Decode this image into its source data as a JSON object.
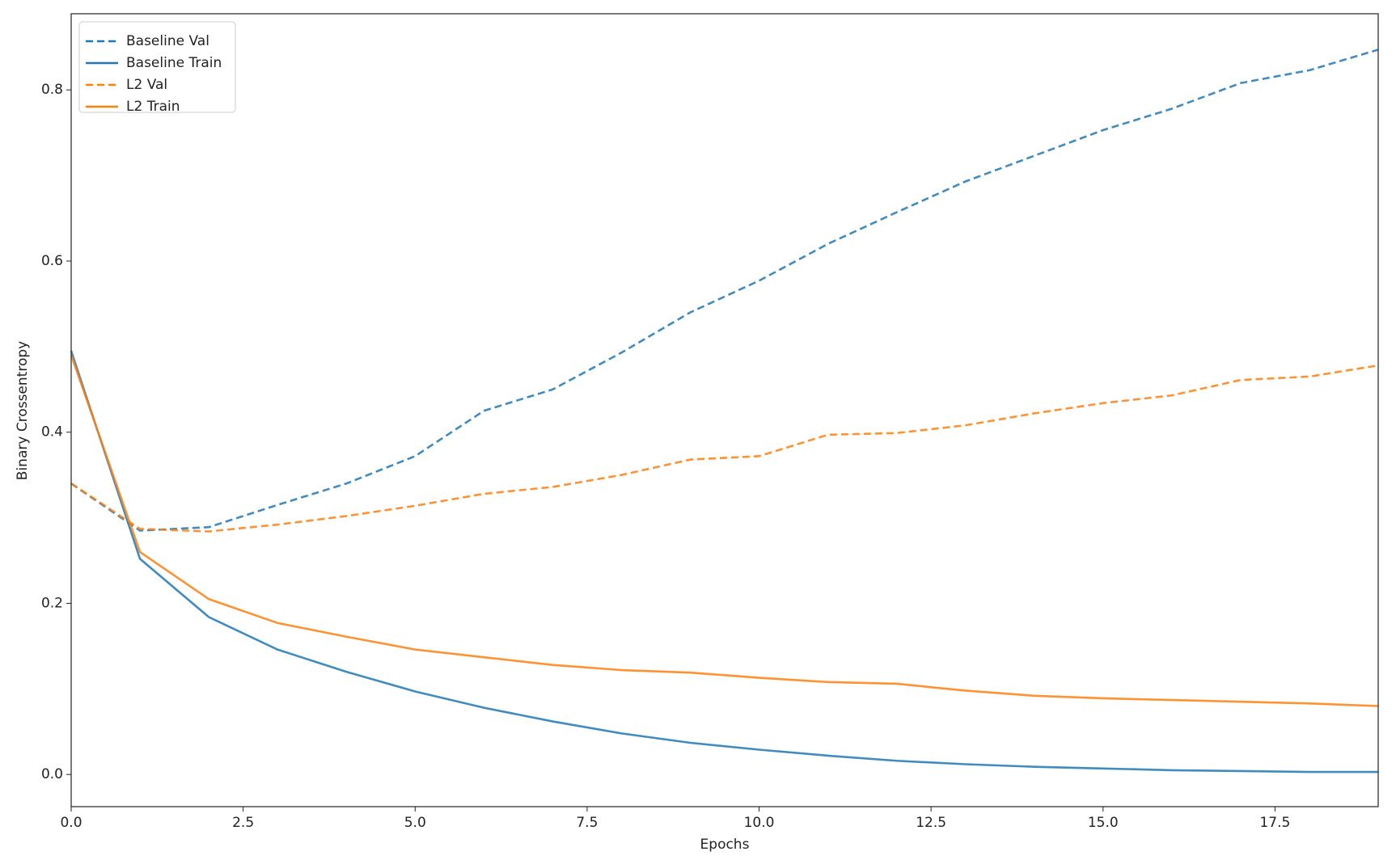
{
  "chart_data": {
    "type": "line",
    "xlabel": "Epochs",
    "ylabel": "Binary Crossentropy",
    "x": [
      0,
      1,
      2,
      3,
      4,
      5,
      6,
      7,
      8,
      9,
      10,
      11,
      12,
      13,
      14,
      15,
      16,
      17,
      18,
      19
    ],
    "series": [
      {
        "name": "Baseline Val",
        "color": "#1f77b4",
        "dashed": true,
        "values": [
          0.34,
          0.285,
          0.289,
          0.315,
          0.34,
          0.372,
          0.425,
          0.45,
          0.493,
          0.54,
          0.577,
          0.62,
          0.657,
          0.693,
          0.723,
          0.753,
          0.778,
          0.808,
          0.823,
          0.847
        ]
      },
      {
        "name": "Baseline Train",
        "color": "#1f77b4",
        "dashed": false,
        "values": [
          0.495,
          0.252,
          0.184,
          0.146,
          0.12,
          0.097,
          0.078,
          0.062,
          0.048,
          0.037,
          0.029,
          0.022,
          0.016,
          0.012,
          0.009,
          0.007,
          0.005,
          0.004,
          0.003,
          0.003
        ]
      },
      {
        "name": "L2 Val",
        "color": "#ff7f0e",
        "dashed": true,
        "values": [
          0.34,
          0.287,
          0.284,
          0.292,
          0.302,
          0.314,
          0.328,
          0.336,
          0.35,
          0.368,
          0.372,
          0.397,
          0.399,
          0.408,
          0.422,
          0.434,
          0.443,
          0.461,
          0.465,
          0.478
        ]
      },
      {
        "name": "L2 Train",
        "color": "#ff7f0e",
        "dashed": false,
        "values": [
          0.49,
          0.26,
          0.205,
          0.177,
          0.161,
          0.146,
          0.137,
          0.128,
          0.122,
          0.119,
          0.113,
          0.108,
          0.106,
          0.098,
          0.092,
          0.089,
          0.087,
          0.085,
          0.083,
          0.08
        ]
      }
    ],
    "xlim": [
      0,
      19
    ],
    "xticks": [
      {
        "value": 0,
        "label": "0.0"
      },
      2.5,
      {
        "value": 5,
        "label": "5.0"
      },
      7.5,
      {
        "value": 10,
        "label": "10.0"
      },
      12.5,
      {
        "value": 15,
        "label": "15.0"
      },
      17.5
    ],
    "ylim": [
      -0.0376,
      0.889
    ],
    "yticks": [
      {
        "value": 0,
        "label": "0.0"
      },
      0.2,
      0.4,
      0.6,
      0.8
    ],
    "grid": false,
    "legend": "upper left"
  }
}
